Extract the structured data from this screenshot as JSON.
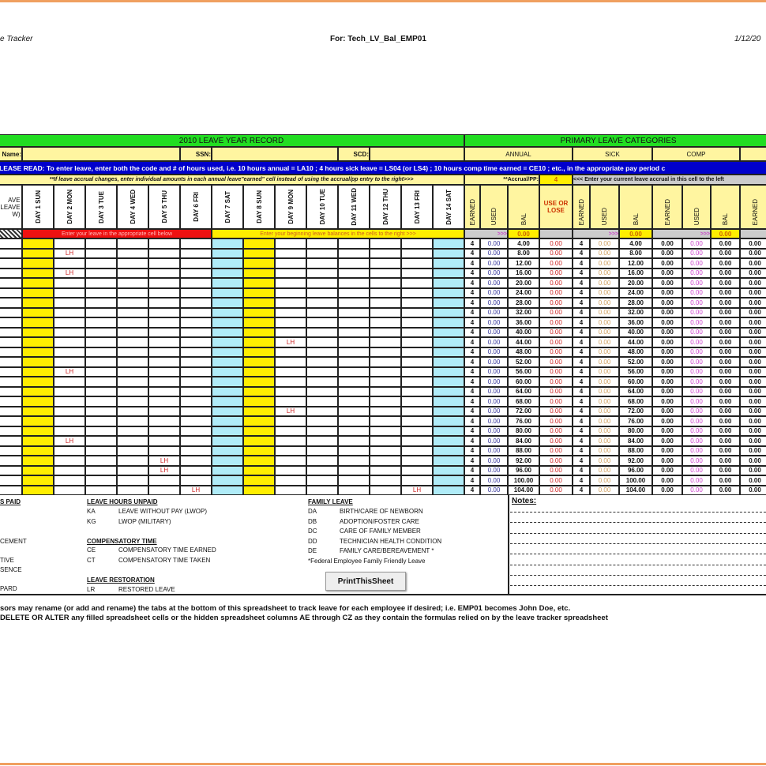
{
  "header": {
    "left": "e Tracker",
    "center": "For: Tech_LV_Bal_EMP01",
    "right": "1/12/20"
  },
  "record": {
    "title": "2010 LEAVE YEAR RECORD",
    "name_label": "Name:",
    "ssn_label": "SSN:",
    "scd_label": "SCD:",
    "instructions": "LEASE READ: To enter leave, enter both the code and # of hours used, i.e. 10 hours annual = LA10 ; 4 hours sick leave = LS04 (or LS4) ; 10 hours comp time earned = CE10 ; etc., in the appropriate pay period c",
    "accrual_note": "**If leave accrual changes, enter individual amounts in each  annual leave\"earned\" cell instead of using the accrual/pp entry to the right>>>",
    "left_header": "AVE\nLEAVE\nW)",
    "days": [
      "DAY 1 SUN",
      "DAY 2 MON",
      "DAY 3 TUE",
      "DAY 4 WED",
      "DAY 5 THU",
      "DAY 6 FRI",
      "DAY 7 SAT",
      "DAY 8 SUN",
      "DAY 9 MON",
      "DAY 10 TUE",
      "DAY 11 WED",
      "DAY 12 THU",
      "DAY 13  FRI",
      "DAY 14 SAT"
    ],
    "red_bar": "Enter your leave in the appropriate cell below",
    "yellow_bar": "Enter your beginning leave balances in the cells to the right >>>"
  },
  "categories": {
    "title": "PRIMARY LEAVE CATEGORIES",
    "annual": "ANNUAL",
    "sick": "SICK",
    "comp": "COMP",
    "accrual_label": "**Accrual/PP:",
    "accrual_value": "4",
    "accrual_hint": "<<< Enter your current leave accrual in this cell to the left",
    "cols": [
      "EARNED",
      "USED",
      "BAL",
      "USE OR LOSE",
      "EARNED",
      "USED",
      "BAL",
      "EARNED",
      "USED",
      "BAL",
      "EARNED"
    ],
    "begin": {
      "arrow": ">>>",
      "annual_bal": "0.00",
      "sick_arrow": ">>>",
      "sick_bal": "0.00",
      "comp_arrow": ">>>",
      "comp_bal": "0.00"
    }
  },
  "leave_entries": [
    {
      "row": 2,
      "day": 2,
      "code": "LH"
    },
    {
      "row": 4,
      "day": 2,
      "code": "LH"
    },
    {
      "row": 11,
      "day": 9,
      "code": "LH"
    },
    {
      "row": 14,
      "day": 2,
      "code": "LH"
    },
    {
      "row": 18,
      "day": 9,
      "code": "LH"
    },
    {
      "row": 21,
      "day": 2,
      "code": "LH"
    },
    {
      "row": 23,
      "day": 5,
      "code": "LH"
    },
    {
      "row": 24,
      "day": 5,
      "code": "LH"
    },
    {
      "row": 26,
      "day": 6,
      "code": "LH"
    },
    {
      "row": 26,
      "day": 13,
      "code": "LH"
    }
  ],
  "rows": [
    [
      "4",
      "0.00",
      "4.00",
      "0.00",
      "4",
      "0.00",
      "4.00",
      "0.00",
      "0.00",
      "0.00",
      "0.00"
    ],
    [
      "4",
      "0.00",
      "8.00",
      "0.00",
      "4",
      "0.00",
      "8.00",
      "0.00",
      "0.00",
      "0.00",
      "0.00"
    ],
    [
      "4",
      "0.00",
      "12.00",
      "0.00",
      "4",
      "0.00",
      "12.00",
      "0.00",
      "0.00",
      "0.00",
      "0.00"
    ],
    [
      "4",
      "0.00",
      "16.00",
      "0.00",
      "4",
      "0.00",
      "16.00",
      "0.00",
      "0.00",
      "0.00",
      "0.00"
    ],
    [
      "4",
      "0.00",
      "20.00",
      "0.00",
      "4",
      "0.00",
      "20.00",
      "0.00",
      "0.00",
      "0.00",
      "0.00"
    ],
    [
      "4",
      "0.00",
      "24.00",
      "0.00",
      "4",
      "0.00",
      "24.00",
      "0.00",
      "0.00",
      "0.00",
      "0.00"
    ],
    [
      "4",
      "0.00",
      "28.00",
      "0.00",
      "4",
      "0.00",
      "28.00",
      "0.00",
      "0.00",
      "0.00",
      "0.00"
    ],
    [
      "4",
      "0.00",
      "32.00",
      "0.00",
      "4",
      "0.00",
      "32.00",
      "0.00",
      "0.00",
      "0.00",
      "0.00"
    ],
    [
      "4",
      "0.00",
      "36.00",
      "0.00",
      "4",
      "0.00",
      "36.00",
      "0.00",
      "0.00",
      "0.00",
      "0.00"
    ],
    [
      "4",
      "0.00",
      "40.00",
      "0.00",
      "4",
      "0.00",
      "40.00",
      "0.00",
      "0.00",
      "0.00",
      "0.00"
    ],
    [
      "4",
      "0.00",
      "44.00",
      "0.00",
      "4",
      "0.00",
      "44.00",
      "0.00",
      "0.00",
      "0.00",
      "0.00"
    ],
    [
      "4",
      "0.00",
      "48.00",
      "0.00",
      "4",
      "0.00",
      "48.00",
      "0.00",
      "0.00",
      "0.00",
      "0.00"
    ],
    [
      "4",
      "0.00",
      "52.00",
      "0.00",
      "4",
      "0.00",
      "52.00",
      "0.00",
      "0.00",
      "0.00",
      "0.00"
    ],
    [
      "4",
      "0.00",
      "56.00",
      "0.00",
      "4",
      "0.00",
      "56.00",
      "0.00",
      "0.00",
      "0.00",
      "0.00"
    ],
    [
      "4",
      "0.00",
      "60.00",
      "0.00",
      "4",
      "0.00",
      "60.00",
      "0.00",
      "0.00",
      "0.00",
      "0.00"
    ],
    [
      "4",
      "0.00",
      "64.00",
      "0.00",
      "4",
      "0.00",
      "64.00",
      "0.00",
      "0.00",
      "0.00",
      "0.00"
    ],
    [
      "4",
      "0.00",
      "68.00",
      "0.00",
      "4",
      "0.00",
      "68.00",
      "0.00",
      "0.00",
      "0.00",
      "0.00"
    ],
    [
      "4",
      "0.00",
      "72.00",
      "0.00",
      "4",
      "0.00",
      "72.00",
      "0.00",
      "0.00",
      "0.00",
      "0.00"
    ],
    [
      "4",
      "0.00",
      "76.00",
      "0.00",
      "4",
      "0.00",
      "76.00",
      "0.00",
      "0.00",
      "0.00",
      "0.00"
    ],
    [
      "4",
      "0.00",
      "80.00",
      "0.00",
      "4",
      "0.00",
      "80.00",
      "0.00",
      "0.00",
      "0.00",
      "0.00"
    ],
    [
      "4",
      "0.00",
      "84.00",
      "0.00",
      "4",
      "0.00",
      "84.00",
      "0.00",
      "0.00",
      "0.00",
      "0.00"
    ],
    [
      "4",
      "0.00",
      "88.00",
      "0.00",
      "4",
      "0.00",
      "88.00",
      "0.00",
      "0.00",
      "0.00",
      "0.00"
    ],
    [
      "4",
      "0.00",
      "92.00",
      "0.00",
      "4",
      "0.00",
      "92.00",
      "0.00",
      "0.00",
      "0.00",
      "0.00"
    ],
    [
      "4",
      "0.00",
      "96.00",
      "0.00",
      "4",
      "0.00",
      "96.00",
      "0.00",
      "0.00",
      "0.00",
      "0.00"
    ],
    [
      "4",
      "0.00",
      "100.00",
      "0.00",
      "4",
      "0.00",
      "100.00",
      "0.00",
      "0.00",
      "0.00",
      "0.00"
    ],
    [
      "4",
      "0.00",
      "104.00",
      "0.00",
      "4",
      "0.00",
      "104.00",
      "0.00",
      "0.00",
      "0.00",
      "0.00"
    ]
  ],
  "legend": {
    "paid": {
      "title": "S PAID",
      "items": [
        "CEMENT",
        "TIVE",
        "SENCE",
        "PARD"
      ]
    },
    "unpaid": {
      "title": "LEAVE HOURS UNPAID",
      "items": [
        {
          "code": "KA",
          "desc": "LEAVE WITHOUT PAY (LWOP)"
        },
        {
          "code": "KG",
          "desc": "LWOP (MILITARY)"
        }
      ]
    },
    "comp": {
      "title": "COMPENSATORY TIME",
      "items": [
        {
          "code": "CE",
          "desc": "COMPENSATORY TIME EARNED"
        },
        {
          "code": "CT",
          "desc": "COMPENSATORY TIME TAKEN"
        }
      ]
    },
    "restoration": {
      "title": "LEAVE RESTORATION",
      "items": [
        {
          "code": "LR",
          "desc": "RESTORED LEAVE"
        }
      ]
    },
    "family": {
      "title": "FAMILY LEAVE",
      "items": [
        {
          "code": "DA",
          "desc": "BIRTH/CARE OF NEWBORN"
        },
        {
          "code": "DB",
          "desc": "ADOPTION/FOSTER CARE"
        },
        {
          "code": "DC",
          "desc": "CARE OF FAMILY MEMBER"
        },
        {
          "code": "DD",
          "desc": "TECHNICIAN HEALTH CONDITION"
        },
        {
          "code": "DE",
          "desc": "FAMILY CARE/BEREAVEMENT *"
        }
      ],
      "note": "*Federal Employee Family Friendly Leave"
    }
  },
  "notes_label": "Notes:",
  "print_button": "PrintThisSheet",
  "footer": [
    "sors may rename (or add and rename) the tabs at the bottom of this spreadsheet to track leave for each employee if desired; i.e. EMP01 becomes John Doe, etc.",
    "DELETE OR ALTER any filled spreadsheet cells or the hidden spreadsheet columns AE through CZ as they contain the formulas relied on by the leave tracker spreadsheet"
  ],
  "colors": {
    "green": "#22dd22",
    "yellow": "#fff5a0",
    "blue": "#0000cc",
    "cyan": "#b0ecf8",
    "day_yellow": "#ffee00",
    "red": "#ee1111",
    "used_blue": "#333399",
    "use_lose_red": "#cc2222",
    "sick_used": "#d0a060",
    "comp_used": "#cc44cc"
  }
}
